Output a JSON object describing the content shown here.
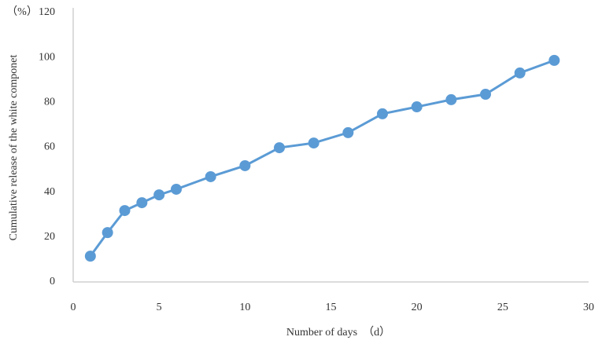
{
  "chart_data": {
    "type": "line",
    "y_unit_label": "（%）",
    "xlabel": "Number of days　（d）",
    "ylabel": "Cumulative release of the white componet",
    "x": [
      1,
      2,
      3,
      4,
      5,
      6,
      8,
      10,
      12,
      14,
      16,
      18,
      20,
      22,
      24,
      26,
      28
    ],
    "series": [
      {
        "color": "#5b9bd5",
        "values": [
          11.5,
          22,
          31.8,
          35.3,
          38.8,
          41.3,
          46.9,
          51.8,
          59.8,
          61.9,
          66.5,
          74.9,
          78,
          81.2,
          83.6,
          93.1,
          98.7
        ]
      }
    ],
    "xlim": [
      0,
      30
    ],
    "xticks": [
      0,
      5,
      10,
      15,
      20,
      25,
      30
    ],
    "ylim": [
      0,
      120
    ],
    "yticks": [
      0,
      20,
      40,
      60,
      80,
      100,
      120
    ]
  }
}
